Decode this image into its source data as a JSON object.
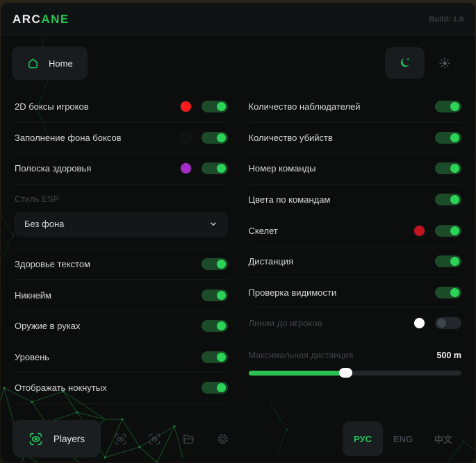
{
  "header": {
    "logo_prefix": "ARC",
    "logo_accent": "ANE",
    "build_label": "Build: 1.0"
  },
  "topnav": {
    "home_label": "Home",
    "theme_dark_icon": "moon",
    "theme_light_icon": "sun",
    "active_theme": "dark"
  },
  "left": {
    "rows": [
      {
        "label": "2D боксы игроков",
        "swatch": "#ff1b1b",
        "state": "on"
      },
      {
        "label": "Заполнение фона боксов",
        "swatch": "#121212",
        "state": "on"
      },
      {
        "label": "Полоска здоровья",
        "swatch": "#a62bc9",
        "state": "on"
      }
    ],
    "esp_style": {
      "label": "Стиль ESP",
      "value": "Без фона",
      "icon": "chevron-down"
    },
    "rows2": [
      {
        "label": "Здоровье текстом",
        "state": "on"
      },
      {
        "label": "Никнейм",
        "state": "on"
      },
      {
        "label": "Оружие в руках",
        "state": "on"
      },
      {
        "label": "Уровень",
        "state": "on"
      },
      {
        "label": "Отображать нокнутых",
        "state": "on"
      }
    ]
  },
  "right": {
    "rows": [
      {
        "label": "Количество наблюдателей",
        "state": "on"
      },
      {
        "label": "Количество убийств",
        "state": "on"
      },
      {
        "label": "Номер команды",
        "state": "on"
      },
      {
        "label": "Цвета по командам",
        "state": "on"
      },
      {
        "label": "Скелет",
        "swatch": "#c2131f",
        "state": "on"
      },
      {
        "label": "Дистанция",
        "state": "on"
      },
      {
        "label": "Проверка видимости",
        "state": "on"
      },
      {
        "label": "Линии до игроков",
        "swatch": "#ffffff",
        "state": "off",
        "dimmed": "true"
      }
    ],
    "distance": {
      "label": "Максимальная дистанция",
      "value": "500 m",
      "percent": 46,
      "dimmed": "true"
    }
  },
  "bottom": {
    "players_label": "Players",
    "nav_icons": [
      "eye-scan",
      "eye-scan",
      "folder",
      "gear"
    ],
    "languages": [
      {
        "label": "РУС",
        "active": true
      },
      {
        "label": "ENG"
      },
      {
        "label": "中文"
      }
    ]
  },
  "colors": {
    "accent_green": "#22c55e",
    "toggle_on_track": "#1c4b29",
    "toggle_on_knob": "#2bd457",
    "toggle_off_track": "#23272c",
    "slider_fill": "#2cc253",
    "window_bg": "#0c0e0d",
    "card_bg": "#181c1e"
  }
}
